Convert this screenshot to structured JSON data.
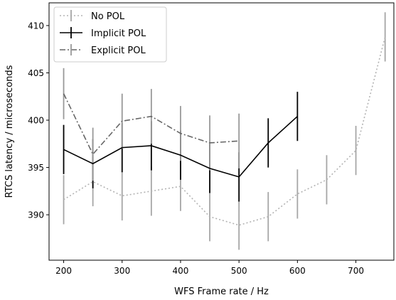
{
  "chart_data": {
    "type": "line",
    "xlabel": "WFS Frame rate / Hz",
    "ylabel": "RTCS latency / microseconds",
    "xlim": [
      175,
      765
    ],
    "ylim": [
      385.2,
      412.4
    ],
    "xticks": [
      200,
      300,
      400,
      500,
      600,
      700
    ],
    "yticks": [
      390,
      395,
      400,
      405,
      410
    ],
    "grid": false,
    "legend_position": "top-left",
    "series": [
      {
        "name": "No POL",
        "color": "#b3b3b3",
        "error_color": "#a6a6a6",
        "line_style": "dotted",
        "x": [
          200,
          250,
          300,
          350,
          400,
          450,
          500,
          550,
          600,
          650,
          700,
          750
        ],
        "y": [
          391.6,
          393.5,
          392.0,
          392.5,
          393.0,
          389.8,
          388.9,
          389.8,
          392.2,
          393.7,
          396.8,
          408.8
        ],
        "err": [
          2.6,
          2.6,
          2.6,
          2.6,
          2.6,
          2.6,
          2.6,
          2.6,
          2.6,
          2.6,
          2.6,
          2.6
        ]
      },
      {
        "name": "Implicit POL",
        "color": "#000000",
        "error_color": "#000000",
        "line_style": "solid",
        "x": [
          200,
          250,
          300,
          350,
          400,
          450,
          500,
          550,
          600
        ],
        "y": [
          396.9,
          395.4,
          397.1,
          397.3,
          396.3,
          394.9,
          394.0,
          397.6,
          400.4
        ],
        "err": [
          2.6,
          2.6,
          2.6,
          2.6,
          2.6,
          2.6,
          2.6,
          2.6,
          2.6
        ]
      },
      {
        "name": "Explicit POL",
        "color": "#666666",
        "error_color": "#999999",
        "line_style": "dashdot",
        "x": [
          200,
          250,
          300,
          350,
          400,
          450,
          500
        ],
        "y": [
          402.8,
          396.4,
          399.9,
          400.4,
          398.6,
          397.6,
          397.8
        ],
        "err": [
          2.7,
          2.8,
          2.9,
          2.9,
          2.9,
          2.9,
          2.9
        ]
      }
    ]
  }
}
